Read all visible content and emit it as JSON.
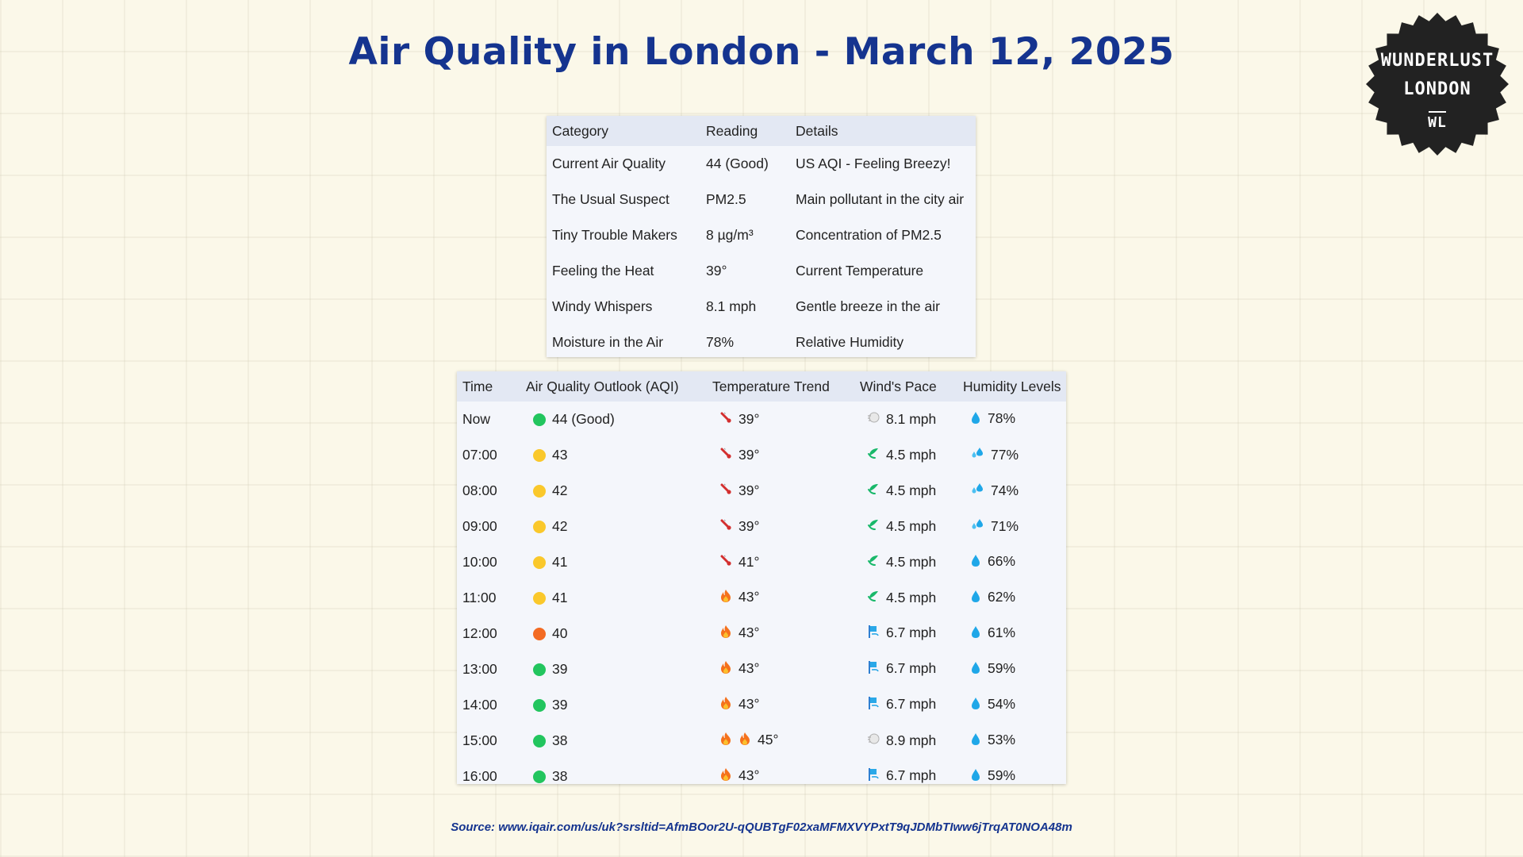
{
  "title": "Air Quality in London - March 12, 2025",
  "badge": {
    "line1": "WUNDERLUST",
    "line2": "LONDON",
    "line3": "WL"
  },
  "summary": {
    "headers": [
      "Category",
      "Reading",
      "Details"
    ],
    "rows": [
      {
        "category": "Current Air Quality",
        "reading": "44 (Good)",
        "details": "US AQI - Feeling Breezy!"
      },
      {
        "category": "The Usual Suspect",
        "reading": "PM2.5",
        "details": "Main pollutant in the city air"
      },
      {
        "category": "Tiny Trouble Makers",
        "reading": "8 µg/m³",
        "details": "Concentration of PM2.5"
      },
      {
        "category": "Feeling the Heat",
        "reading": "39°",
        "details": "Current Temperature"
      },
      {
        "category": "Windy Whispers",
        "reading": "8.1 mph",
        "details": "Gentle breeze in the air"
      },
      {
        "category": "Moisture in the Air",
        "reading": "78%",
        "details": "Relative Humidity"
      }
    ]
  },
  "forecast": {
    "headers": [
      "Time",
      "Air Quality Outlook (AQI)",
      "Temperature Trend",
      "Wind's Pace",
      "Humidity Levels"
    ],
    "rows": [
      {
        "time": "Now",
        "aqi_color": "green",
        "aqi": "44 (Good)",
        "temp_icon": "thermometer-icon",
        "temp_icons": 1,
        "temp": "39°",
        "wind_icon": "wind-face-icon",
        "wind": "8.1 mph",
        "hum_icon": "droplet-icon",
        "hum": "78%"
      },
      {
        "time": "07:00",
        "aqi_color": "yellow",
        "aqi": "43",
        "temp_icon": "thermometer-icon",
        "temp_icons": 1,
        "temp": "39°",
        "wind_icon": "leaf-wind-icon",
        "wind": "4.5 mph",
        "hum_icon": "sweat-droplets-icon",
        "hum": "77%"
      },
      {
        "time": "08:00",
        "aqi_color": "yellow",
        "aqi": "42",
        "temp_icon": "thermometer-icon",
        "temp_icons": 1,
        "temp": "39°",
        "wind_icon": "leaf-wind-icon",
        "wind": "4.5 mph",
        "hum_icon": "sweat-droplets-icon",
        "hum": "74%"
      },
      {
        "time": "09:00",
        "aqi_color": "yellow",
        "aqi": "42",
        "temp_icon": "thermometer-icon",
        "temp_icons": 1,
        "temp": "39°",
        "wind_icon": "leaf-wind-icon",
        "wind": "4.5 mph",
        "hum_icon": "sweat-droplets-icon",
        "hum": "71%"
      },
      {
        "time": "10:00",
        "aqi_color": "yellow",
        "aqi": "41",
        "temp_icon": "thermometer-icon",
        "temp_icons": 1,
        "temp": "41°",
        "wind_icon": "leaf-wind-icon",
        "wind": "4.5 mph",
        "hum_icon": "droplet-icon",
        "hum": "66%"
      },
      {
        "time": "11:00",
        "aqi_color": "yellow",
        "aqi": "41",
        "temp_icon": "fire-icon",
        "temp_icons": 1,
        "temp": "43°",
        "wind_icon": "leaf-wind-icon",
        "wind": "4.5 mph",
        "hum_icon": "droplet-icon",
        "hum": "62%"
      },
      {
        "time": "12:00",
        "aqi_color": "orange",
        "aqi": "40",
        "temp_icon": "fire-icon",
        "temp_icons": 1,
        "temp": "43°",
        "wind_icon": "wind-flag-icon",
        "wind": "6.7 mph",
        "hum_icon": "droplet-icon",
        "hum": "61%"
      },
      {
        "time": "13:00",
        "aqi_color": "green",
        "aqi": "39",
        "temp_icon": "fire-icon",
        "temp_icons": 1,
        "temp": "43°",
        "wind_icon": "wind-flag-icon",
        "wind": "6.7 mph",
        "hum_icon": "droplet-icon",
        "hum": "59%"
      },
      {
        "time": "14:00",
        "aqi_color": "green",
        "aqi": "39",
        "temp_icon": "fire-icon",
        "temp_icons": 1,
        "temp": "43°",
        "wind_icon": "wind-flag-icon",
        "wind": "6.7 mph",
        "hum_icon": "droplet-icon",
        "hum": "54%"
      },
      {
        "time": "15:00",
        "aqi_color": "green",
        "aqi": "38",
        "temp_icon": "fire-icon",
        "temp_icons": 2,
        "temp": "45°",
        "wind_icon": "wind-face-icon",
        "wind": "8.9 mph",
        "hum_icon": "droplet-icon",
        "hum": "53%"
      },
      {
        "time": "16:00",
        "aqi_color": "green",
        "aqi": "38",
        "temp_icon": "fire-icon",
        "temp_icons": 1,
        "temp": "43°",
        "wind_icon": "wind-flag-icon",
        "wind": "6.7 mph",
        "hum_icon": "droplet-icon",
        "hum": "59%"
      }
    ]
  },
  "source": "Source: www.iqair.com/us/uk?srsltid=AfmBOor2U-qQUBTgF02xaMFMXVYPxtT9qJDMbTIww6jTrqAT0NOA48m",
  "colors": {
    "title": "#15348f",
    "good": "#22c55e",
    "moderate": "#fac82b",
    "elevated": "#f36a22",
    "background": "#fbf8e9"
  }
}
